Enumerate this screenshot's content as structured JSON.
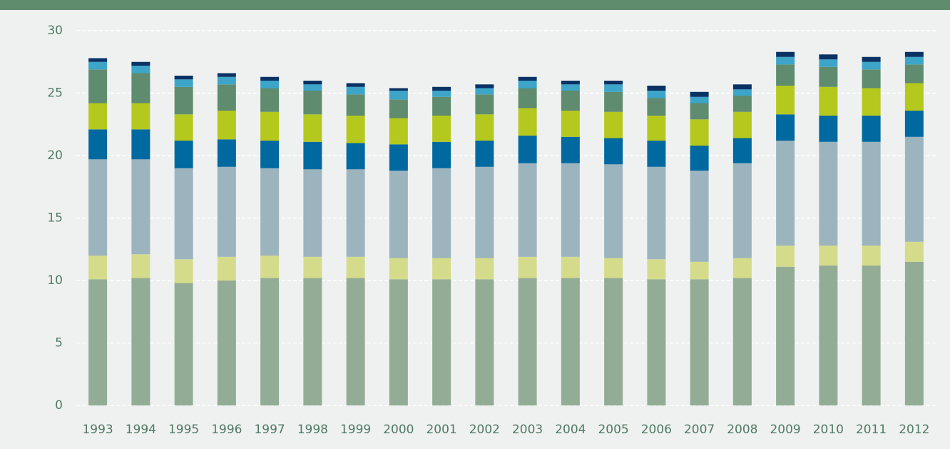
{
  "chart_data": {
    "type": "stacked_bar",
    "categories": [
      "1993",
      "1994",
      "1995",
      "1996",
      "1997",
      "1998",
      "1999",
      "2000",
      "2001",
      "2002",
      "2003",
      "2004",
      "2005",
      "2006",
      "2007",
      "2008",
      "2009",
      "2010",
      "2011",
      "2012"
    ],
    "series": [
      {
        "color": "#93ac96",
        "values": [
          10.1,
          10.2,
          9.8,
          10.0,
          10.2,
          10.2,
          10.2,
          10.1,
          10.1,
          10.1,
          10.2,
          10.2,
          10.2,
          10.1,
          10.1,
          10.2,
          11.1,
          11.2,
          11.2,
          11.5
        ]
      },
      {
        "color": "#d4dc8c",
        "values": [
          1.9,
          1.9,
          1.9,
          1.9,
          1.8,
          1.7,
          1.7,
          1.7,
          1.7,
          1.7,
          1.7,
          1.7,
          1.6,
          1.6,
          1.4,
          1.6,
          1.7,
          1.6,
          1.6,
          1.6
        ]
      },
      {
        "color": "#9cb4be",
        "values": [
          7.7,
          7.6,
          7.3,
          7.2,
          7.0,
          7.0,
          7.0,
          7.0,
          7.2,
          7.3,
          7.5,
          7.5,
          7.5,
          7.4,
          7.3,
          7.6,
          8.4,
          8.3,
          8.3,
          8.4
        ]
      },
      {
        "color": "#0069a0",
        "values": [
          2.4,
          2.4,
          2.2,
          2.2,
          2.2,
          2.2,
          2.1,
          2.1,
          2.1,
          2.1,
          2.2,
          2.1,
          2.1,
          2.1,
          2.0,
          2.0,
          2.1,
          2.1,
          2.1,
          2.1
        ]
      },
      {
        "color": "#b4c81e",
        "values": [
          2.1,
          2.1,
          2.1,
          2.3,
          2.3,
          2.2,
          2.2,
          2.1,
          2.1,
          2.1,
          2.2,
          2.1,
          2.1,
          2.0,
          2.1,
          2.1,
          2.3,
          2.3,
          2.2,
          2.2
        ]
      },
      {
        "color": "#5f8c6e",
        "values": [
          2.7,
          2.4,
          2.2,
          2.1,
          1.9,
          1.9,
          1.7,
          1.5,
          1.5,
          1.6,
          1.6,
          1.6,
          1.6,
          1.4,
          1.3,
          1.3,
          1.7,
          1.6,
          1.5,
          1.5
        ]
      },
      {
        "color": "#3ca5c8",
        "values": [
          0.6,
          0.6,
          0.6,
          0.6,
          0.6,
          0.5,
          0.6,
          0.7,
          0.5,
          0.5,
          0.6,
          0.5,
          0.6,
          0.6,
          0.5,
          0.5,
          0.6,
          0.6,
          0.6,
          0.6
        ]
      },
      {
        "color": "#0a3264",
        "values": [
          0.3,
          0.3,
          0.3,
          0.3,
          0.3,
          0.3,
          0.3,
          0.2,
          0.3,
          0.3,
          0.3,
          0.3,
          0.3,
          0.4,
          0.4,
          0.4,
          0.4,
          0.4,
          0.4,
          0.4
        ]
      }
    ],
    "ylim": [
      0,
      30
    ],
    "yticks": [
      0,
      5,
      10,
      15,
      20,
      25,
      30
    ],
    "grid": true
  }
}
